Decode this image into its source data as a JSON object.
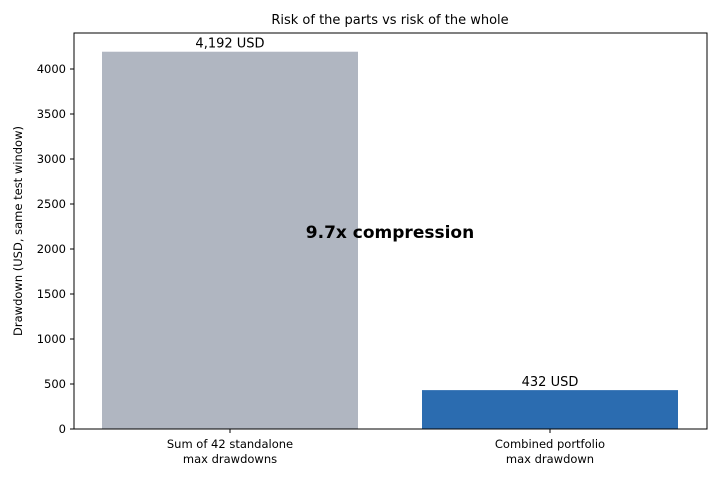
{
  "chart_data": {
    "type": "bar",
    "title": "Risk of the parts vs risk of the whole",
    "xlabel": "",
    "ylabel": "Drawdown (USD, same test window)",
    "ylim": [
      0,
      4400
    ],
    "yticks": [
      0,
      500,
      1000,
      1500,
      2000,
      2500,
      3000,
      3500,
      4000
    ],
    "categories": [
      [
        "Sum of 42 standalone",
        "max drawdowns"
      ],
      [
        "Combined portfolio",
        "max drawdown"
      ]
    ],
    "values": [
      4192,
      432
    ],
    "data_labels": [
      "4,192 USD",
      "432 USD"
    ],
    "bar_colors": [
      "#b0b6c1",
      "#2b6cb0"
    ],
    "annotation": "9.7x compression",
    "grid": false,
    "legend": "none"
  }
}
